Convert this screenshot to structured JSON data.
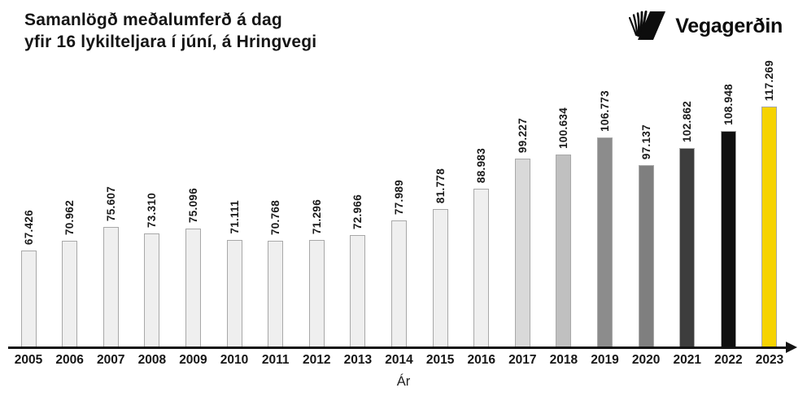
{
  "header": {
    "title_line1": "Samanlögð meðalumferð á dag",
    "title_line2": "yfir 16 lykilteljara í júní, á Hringvegi",
    "logo_text": "Vegagerðin"
  },
  "chart_data": {
    "type": "bar",
    "title": "Samanlögð meðalumferð á dag yfir 16 lykilteljara í júní, á Hringvegi",
    "xlabel": "Ár",
    "ylabel": "",
    "categories": [
      "2005",
      "2006",
      "2007",
      "2008",
      "2009",
      "2010",
      "2011",
      "2012",
      "2013",
      "2014",
      "2015",
      "2016",
      "2017",
      "2018",
      "2019",
      "2020",
      "2021",
      "2022",
      "2023"
    ],
    "values": [
      67426,
      70962,
      75607,
      73310,
      75096,
      71111,
      70768,
      71296,
      72966,
      77989,
      81778,
      88983,
      99227,
      100634,
      106773,
      97137,
      102862,
      108948,
      117269
    ],
    "value_labels": [
      "67.426",
      "70.962",
      "75.607",
      "73.310",
      "75.096",
      "71.111",
      "70.768",
      "71.296",
      "72.966",
      "77.989",
      "81.778",
      "88.983",
      "99.227",
      "100.634",
      "106.773",
      "97.137",
      "102.862",
      "108.948",
      "117.269"
    ],
    "bar_colors": [
      "#efefef",
      "#efefef",
      "#efefef",
      "#efefef",
      "#efefef",
      "#efefef",
      "#efefef",
      "#efefef",
      "#efefef",
      "#efefef",
      "#efefef",
      "#efefef",
      "#d9d9d9",
      "#c0c0c0",
      "#8c8c8c",
      "#7f7f7f",
      "#3d3d3d",
      "#0f0f0f",
      "#f6d300"
    ],
    "bar_border_color": "#a8a8a8",
    "axis_color": "#131313",
    "accent_color": "#f6d300",
    "ylim": [
      34000,
      121000
    ],
    "grid": false,
    "legend": "none",
    "value_label_style": "rotated-vertical-above-bar"
  }
}
